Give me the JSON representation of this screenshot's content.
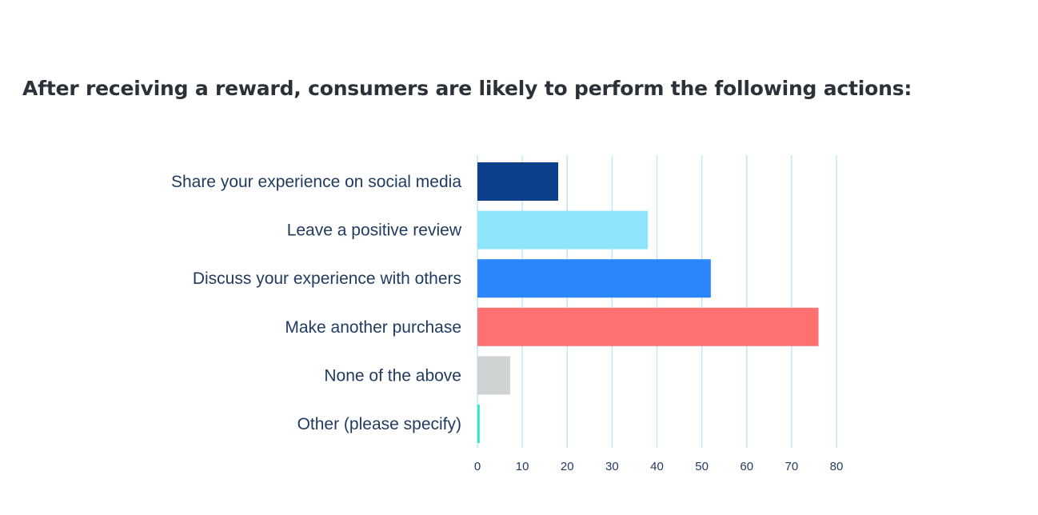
{
  "chart_data": {
    "type": "bar",
    "orientation": "horizontal",
    "title": "After receiving a reward, consumers are likely to perform the following actions:",
    "categories": [
      "Share your experience on social media",
      "Leave a positive review",
      "Discuss your experience with others",
      "Make another purchase",
      "None of the above",
      "Other (please specify)"
    ],
    "values": [
      18,
      38,
      52,
      76,
      7.3,
      0.5
    ],
    "colors": [
      "#0e3f8a",
      "#8fe6fc",
      "#2b86fb",
      "#ff7171",
      "#d0d3d4",
      "#2ee6c8"
    ],
    "xlim": [
      0,
      80
    ],
    "xticks": [
      "0",
      "10",
      "20",
      "30",
      "40",
      "50",
      "60",
      "70",
      "80"
    ],
    "grid": "vertical",
    "grid_color": "#bfe3f7",
    "xlabel": "",
    "ylabel": ""
  }
}
